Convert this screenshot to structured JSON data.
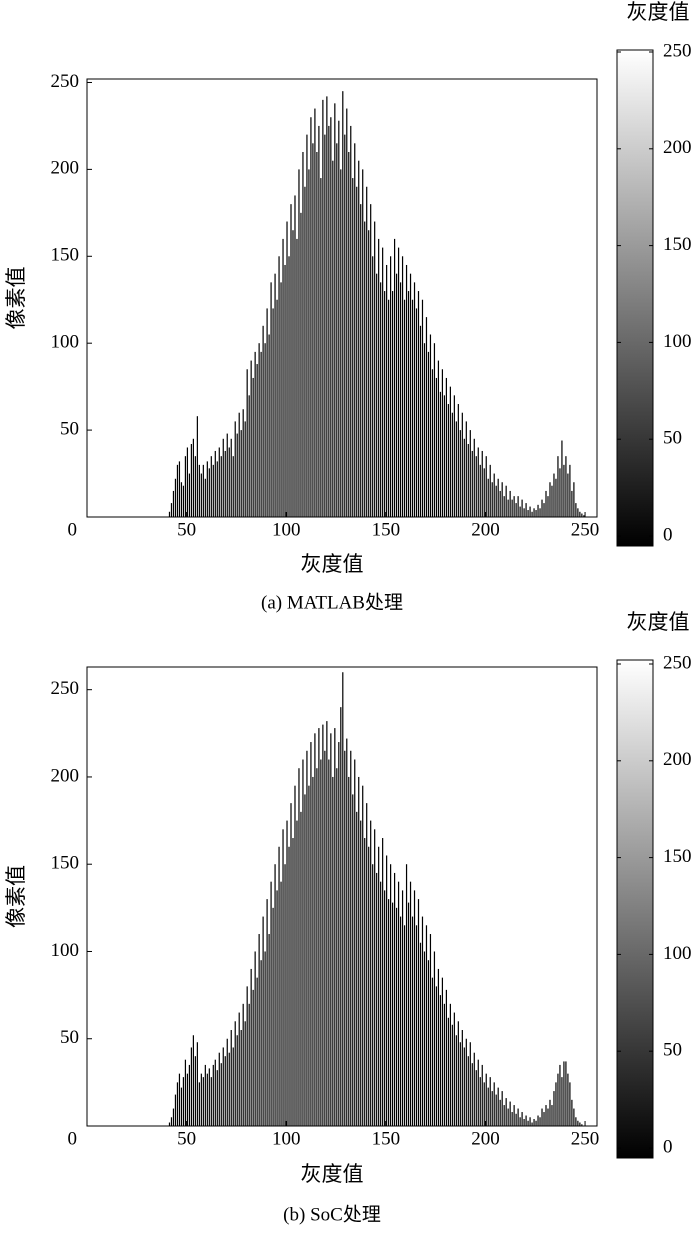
{
  "chart_data": [
    {
      "type": "bar",
      "caption": "(a) MATLAB处理",
      "xlabel": "灰度值",
      "ylabel": "像素值",
      "color": "#000000",
      "x": [
        0,
        1,
        2,
        3,
        4,
        5,
        6,
        7,
        8,
        9,
        10,
        11,
        12,
        13,
        14,
        15,
        16,
        17,
        18,
        19,
        20,
        21,
        22,
        23,
        24,
        25,
        26,
        27,
        28,
        29,
        30,
        31,
        32,
        33,
        34,
        35,
        36,
        37,
        38,
        39,
        40,
        41,
        42,
        43,
        44,
        45,
        46,
        47,
        48,
        49,
        50,
        51,
        52,
        53,
        54,
        55,
        56,
        57,
        58,
        59,
        60,
        61,
        62,
        63,
        64,
        65,
        66,
        67,
        68,
        69,
        70,
        71,
        72,
        73,
        74,
        75,
        76,
        77,
        78,
        79,
        80,
        81,
        82,
        83,
        84,
        85,
        86,
        87,
        88,
        89,
        90,
        91,
        92,
        93,
        94,
        95,
        96,
        97,
        98,
        99,
        100,
        101,
        102,
        103,
        104,
        105,
        106,
        107,
        108,
        109,
        110,
        111,
        112,
        113,
        114,
        115,
        116,
        117,
        118,
        119,
        120,
        121,
        122,
        123,
        124,
        125,
        126,
        127,
        128,
        129,
        130,
        131,
        132,
        133,
        134,
        135,
        136,
        137,
        138,
        139,
        140,
        141,
        142,
        143,
        144,
        145,
        146,
        147,
        148,
        149,
        150,
        151,
        152,
        153,
        154,
        155,
        156,
        157,
        158,
        159,
        160,
        161,
        162,
        163,
        164,
        165,
        166,
        167,
        168,
        169,
        170,
        171,
        172,
        173,
        174,
        175,
        176,
        177,
        178,
        179,
        180,
        181,
        182,
        183,
        184,
        185,
        186,
        187,
        188,
        189,
        190,
        191,
        192,
        193,
        194,
        195,
        196,
        197,
        198,
        199,
        200,
        201,
        202,
        203,
        204,
        205,
        206,
        207,
        208,
        209,
        210,
        211,
        212,
        213,
        214,
        215,
        216,
        217,
        218,
        219,
        220,
        221,
        222,
        223,
        224,
        225,
        226,
        227,
        228,
        229,
        230,
        231,
        232,
        233,
        234,
        235,
        236,
        237,
        238,
        239,
        240,
        241,
        242,
        243,
        244,
        245,
        246,
        247,
        248,
        249,
        250,
        251,
        252,
        253,
        254,
        255
      ],
      "values": [
        0,
        0,
        0,
        0,
        0,
        0,
        0,
        0,
        0,
        0,
        0,
        0,
        0,
        0,
        0,
        0,
        0,
        0,
        0,
        0,
        0,
        0,
        0,
        0,
        0,
        0,
        0,
        0,
        0,
        0,
        0,
        0,
        0,
        0,
        0,
        0,
        0,
        0,
        0,
        0,
        0,
        3,
        8,
        15,
        22,
        30,
        32,
        20,
        18,
        35,
        40,
        25,
        42,
        45,
        35,
        58,
        30,
        25,
        30,
        22,
        32,
        28,
        35,
        30,
        38,
        32,
        40,
        35,
        45,
        38,
        48,
        40,
        45,
        35,
        55,
        48,
        60,
        50,
        62,
        55,
        85,
        70,
        90,
        80,
        95,
        88,
        100,
        95,
        110,
        100,
        120,
        105,
        135,
        120,
        140,
        125,
        150,
        135,
        160,
        145,
        170,
        150,
        180,
        165,
        185,
        160,
        200,
        175,
        210,
        190,
        220,
        200,
        230,
        215,
        235,
        210,
        225,
        195,
        240,
        220,
        242,
        225,
        230,
        205,
        238,
        215,
        228,
        200,
        245,
        220,
        235,
        210,
        225,
        195,
        215,
        190,
        205,
        180,
        200,
        170,
        190,
        165,
        180,
        150,
        170,
        140,
        160,
        135,
        155,
        130,
        145,
        125,
        150,
        130,
        160,
        140,
        155,
        135,
        150,
        125,
        145,
        130,
        140,
        125,
        135,
        120,
        130,
        110,
        125,
        100,
        115,
        95,
        105,
        85,
        100,
        80,
        90,
        72,
        85,
        70,
        80,
        65,
        75,
        60,
        70,
        55,
        65,
        50,
        60,
        45,
        55,
        42,
        50,
        38,
        45,
        35,
        40,
        30,
        38,
        28,
        35,
        22,
        30,
        20,
        25,
        18,
        22,
        15,
        20,
        12,
        18,
        10,
        15,
        10,
        12,
        8,
        12,
        6,
        10,
        5,
        8,
        4,
        6,
        3,
        5,
        4,
        7,
        5,
        10,
        8,
        15,
        12,
        20,
        18,
        25,
        22,
        35,
        28,
        44,
        30,
        35,
        25,
        30,
        15,
        20,
        8,
        5,
        3,
        2,
        1,
        0,
        0,
        0,
        0,
        0,
        0
      ],
      "xlim": [
        0,
        256
      ],
      "ylim": [
        0,
        252
      ],
      "xticks": [
        0,
        50,
        100,
        150,
        200,
        250
      ],
      "yticks": [
        50,
        100,
        150,
        200,
        250
      ],
      "colorbar": {
        "label": "灰度值",
        "lim": [
          0,
          250
        ],
        "ticks": [
          0,
          50,
          100,
          150,
          200,
          250
        ]
      }
    },
    {
      "type": "bar",
      "caption": "(b) SoC处理",
      "xlabel": "灰度值",
      "ylabel": "像素值",
      "color": "#000000",
      "x": [
        0,
        1,
        2,
        3,
        4,
        5,
        6,
        7,
        8,
        9,
        10,
        11,
        12,
        13,
        14,
        15,
        16,
        17,
        18,
        19,
        20,
        21,
        22,
        23,
        24,
        25,
        26,
        27,
        28,
        29,
        30,
        31,
        32,
        33,
        34,
        35,
        36,
        37,
        38,
        39,
        40,
        41,
        42,
        43,
        44,
        45,
        46,
        47,
        48,
        49,
        50,
        51,
        52,
        53,
        54,
        55,
        56,
        57,
        58,
        59,
        60,
        61,
        62,
        63,
        64,
        65,
        66,
        67,
        68,
        69,
        70,
        71,
        72,
        73,
        74,
        75,
        76,
        77,
        78,
        79,
        80,
        81,
        82,
        83,
        84,
        85,
        86,
        87,
        88,
        89,
        90,
        91,
        92,
        93,
        94,
        95,
        96,
        97,
        98,
        99,
        100,
        101,
        102,
        103,
        104,
        105,
        106,
        107,
        108,
        109,
        110,
        111,
        112,
        113,
        114,
        115,
        116,
        117,
        118,
        119,
        120,
        121,
        122,
        123,
        124,
        125,
        126,
        127,
        128,
        129,
        130,
        131,
        132,
        133,
        134,
        135,
        136,
        137,
        138,
        139,
        140,
        141,
        142,
        143,
        144,
        145,
        146,
        147,
        148,
        149,
        150,
        151,
        152,
        153,
        154,
        155,
        156,
        157,
        158,
        159,
        160,
        161,
        162,
        163,
        164,
        165,
        166,
        167,
        168,
        169,
        170,
        171,
        172,
        173,
        174,
        175,
        176,
        177,
        178,
        179,
        180,
        181,
        182,
        183,
        184,
        185,
        186,
        187,
        188,
        189,
        190,
        191,
        192,
        193,
        194,
        195,
        196,
        197,
        198,
        199,
        200,
        201,
        202,
        203,
        204,
        205,
        206,
        207,
        208,
        209,
        210,
        211,
        212,
        213,
        214,
        215,
        216,
        217,
        218,
        219,
        220,
        221,
        222,
        223,
        224,
        225,
        226,
        227,
        228,
        229,
        230,
        231,
        232,
        233,
        234,
        235,
        236,
        237,
        238,
        239,
        240,
        241,
        242,
        243,
        244,
        245,
        246,
        247,
        248,
        249,
        250,
        251,
        252,
        253,
        254,
        255
      ],
      "values": [
        0,
        0,
        0,
        0,
        0,
        0,
        0,
        0,
        0,
        0,
        0,
        0,
        0,
        0,
        0,
        0,
        0,
        0,
        0,
        0,
        0,
        0,
        0,
        0,
        0,
        0,
        0,
        0,
        0,
        0,
        0,
        0,
        0,
        0,
        0,
        0,
        0,
        0,
        0,
        0,
        0,
        2,
        5,
        10,
        18,
        25,
        30,
        22,
        28,
        38,
        30,
        35,
        45,
        52,
        40,
        48,
        25,
        30,
        28,
        35,
        30,
        33,
        28,
        35,
        38,
        32,
        42,
        36,
        45,
        40,
        50,
        42,
        55,
        45,
        60,
        52,
        65,
        55,
        70,
        60,
        80,
        70,
        90,
        78,
        100,
        85,
        110,
        95,
        120,
        100,
        130,
        110,
        140,
        125,
        150,
        135,
        160,
        140,
        170,
        150,
        175,
        160,
        185,
        165,
        195,
        175,
        205,
        180,
        210,
        190,
        215,
        195,
        220,
        200,
        225,
        205,
        228,
        210,
        230,
        215,
        232,
        210,
        225,
        200,
        228,
        205,
        220,
        240,
        260,
        215,
        222,
        200,
        215,
        190,
        210,
        180,
        200,
        175,
        195,
        165,
        185,
        160,
        175,
        150,
        170,
        145,
        160,
        140,
        165,
        135,
        155,
        130,
        150,
        128,
        145,
        125,
        140,
        120,
        135,
        115,
        150,
        128,
        140,
        120,
        135,
        115,
        130,
        105,
        120,
        100,
        115,
        95,
        110,
        85,
        100,
        80,
        90,
        75,
        85,
        70,
        78,
        62,
        70,
        58,
        65,
        52,
        60,
        48,
        55,
        45,
        50,
        40,
        48,
        36,
        42,
        32,
        38,
        28,
        35,
        25,
        30,
        22,
        28,
        20,
        25,
        18,
        22,
        15,
        20,
        12,
        16,
        10,
        14,
        8,
        12,
        7,
        10,
        5,
        8,
        4,
        6,
        3,
        5,
        2,
        4,
        3,
        6,
        5,
        10,
        8,
        12,
        10,
        15,
        12,
        20,
        25,
        30,
        35,
        28,
        37,
        37,
        30,
        25,
        15,
        10,
        5,
        3,
        2,
        1,
        0,
        0,
        0,
        0,
        0,
        0,
        0
      ],
      "xlim": [
        0,
        256
      ],
      "ylim": [
        0,
        263
      ],
      "xticks": [
        0,
        50,
        100,
        150,
        200,
        250
      ],
      "yticks": [
        50,
        100,
        150,
        200,
        250
      ],
      "colorbar": {
        "label": "灰度值",
        "lim": [
          0,
          250
        ],
        "ticks": [
          0,
          50,
          100,
          150,
          200,
          250
        ]
      }
    }
  ]
}
